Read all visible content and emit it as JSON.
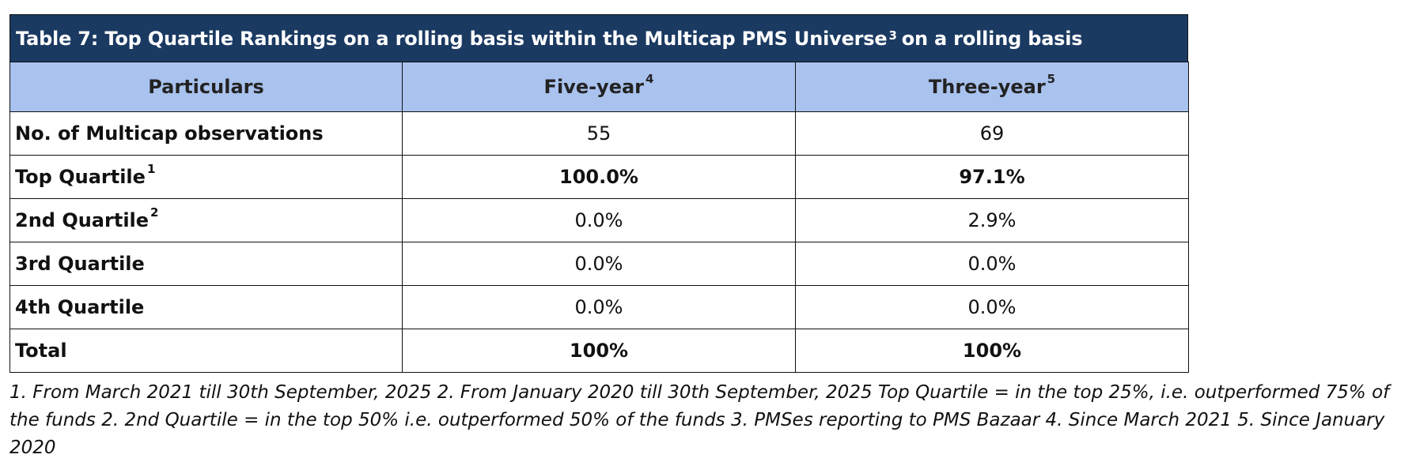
{
  "table": {
    "title": "Table 7: Top Quartile Rankings on a rolling basis within the Multicap PMS Universe",
    "title_sup": "3",
    "title_suffix": "on a rolling basis",
    "headers": [
      {
        "text": "Particulars",
        "sup": ""
      },
      {
        "text": "Five-year",
        "sup": "4"
      },
      {
        "text": "Three-year",
        "sup": "5"
      }
    ],
    "rows": [
      {
        "label": "No. of Multicap observations",
        "sup": "",
        "five": "55",
        "three": "69",
        "bold": false
      },
      {
        "label": "Top Quartile",
        "sup": "1",
        "five": "100.0%",
        "three": "97.1%",
        "bold": true
      },
      {
        "label": "2nd Quartile",
        "sup": "2",
        "five": "0.0%",
        "three": "2.9%",
        "bold": false
      },
      {
        "label": "3rd Quartile",
        "sup": "",
        "five": "0.0%",
        "three": "0.0%",
        "bold": false
      },
      {
        "label": "4th Quartile",
        "sup": "",
        "five": "0.0%",
        "three": "0.0%",
        "bold": false
      },
      {
        "label": "Total",
        "sup": "",
        "five": "100%",
        "three": "100%",
        "bold": true
      }
    ]
  },
  "footnote": "1. From March 2021 till 30th September, 2025 2. From January 2020 till 30th September, 2025 Top Quartile = in the top 25%, i.e. outperformed 75% of the funds 2. 2nd Quartile = in the top 50% i.e. outperformed 50% of the funds 3. PMSes reporting to PMS Bazaar 4. Since March 2021 5. Since January 2020",
  "colors": {
    "title_bg": "#1b3a62",
    "header_bg": "#a9c2ee"
  }
}
